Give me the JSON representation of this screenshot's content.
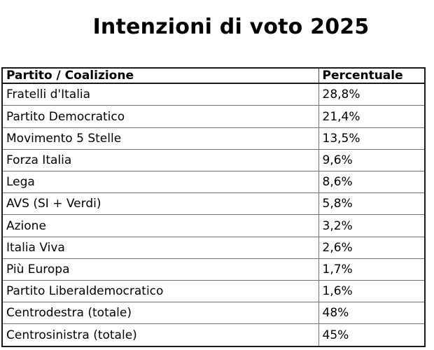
{
  "page": {
    "title": "Intenzioni di voto 2025"
  },
  "chart_data": {
    "type": "table",
    "title": "Intenzioni di voto 2025",
    "columns": [
      "Partito / Coalizione",
      "Percentuale"
    ],
    "rows": [
      [
        "Fratelli d'Italia",
        "28,8%"
      ],
      [
        "Partito Democratico",
        "21,4%"
      ],
      [
        "Movimento 5 Stelle",
        "13,5%"
      ],
      [
        "Forza Italia",
        "9,6%"
      ],
      [
        "Lega",
        "8,6%"
      ],
      [
        "AVS (SI + Verdi)",
        "5,8%"
      ],
      [
        "Azione",
        "3,2%"
      ],
      [
        "Italia Viva",
        "2,6%"
      ],
      [
        "Più Europa",
        "1,7%"
      ],
      [
        "Partito Liberaldemocratico",
        "1,6%"
      ],
      [
        "Centrodestra (totale)",
        "48%"
      ],
      [
        "Centrosinistra (totale)",
        "45%"
      ]
    ],
    "values_numeric": [
      28.8,
      21.4,
      13.5,
      9.6,
      8.6,
      5.8,
      3.2,
      2.6,
      1.7,
      1.6,
      48,
      45
    ],
    "layout": {
      "grid": "horizontal-row-separators",
      "header_style": "bold-dark-underline",
      "column_alignment": [
        "left",
        "left"
      ]
    }
  },
  "colors": {
    "background": "#ffffff",
    "text": "#000000",
    "border_dark": "#1a1a1a",
    "row_line": "#707070"
  }
}
